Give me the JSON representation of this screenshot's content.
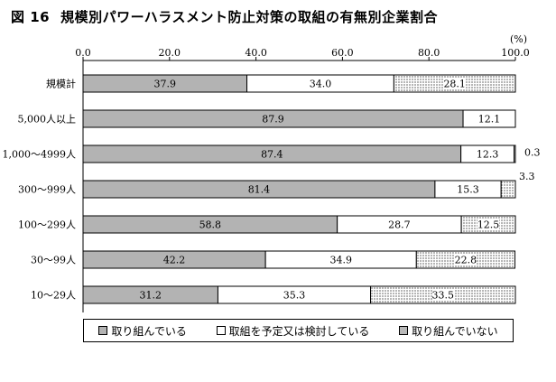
{
  "chart_data": {
    "type": "bar",
    "orientation": "horizontal",
    "stacked": true,
    "title_number": "図 16",
    "title": "規模別パワーハラスメント防止対策の取組の有無別企業割合",
    "unit_label": "(%)",
    "xlim": [
      0,
      100
    ],
    "x_ticks": [
      "0.0",
      "20.0",
      "40.0",
      "60.0",
      "80.0",
      "100.0"
    ],
    "categories": [
      "規模計",
      "5,000人以上",
      "1,000～4999人",
      "300～999人",
      "100～299人",
      "30～99人",
      "10～29人"
    ],
    "series": [
      {
        "name": "取り組んでいる",
        "color": "#b3b3b3",
        "values": [
          37.9,
          87.9,
          87.4,
          81.4,
          58.8,
          42.2,
          31.2
        ],
        "labels": [
          "37.9",
          "87.9",
          "87.4",
          "81.4",
          "58.8",
          "42.2",
          "31.2"
        ]
      },
      {
        "name": "取組を予定又は検討している",
        "color": "#ffffff",
        "values": [
          34.0,
          12.1,
          12.3,
          15.3,
          28.7,
          34.9,
          35.3
        ],
        "labels": [
          "34.0",
          "12.1",
          "12.3",
          "15.3",
          "28.7",
          "34.9",
          "35.3"
        ]
      },
      {
        "name": "取り組んでいない",
        "color": "dotted",
        "values": [
          28.1,
          0,
          0.3,
          3.3,
          12.5,
          22.8,
          33.5
        ],
        "labels": [
          "28.1",
          "",
          "0.3",
          "3.3",
          "12.5",
          "22.8",
          "33.5"
        ]
      }
    ],
    "legend_position": "bottom",
    "grid": false
  }
}
